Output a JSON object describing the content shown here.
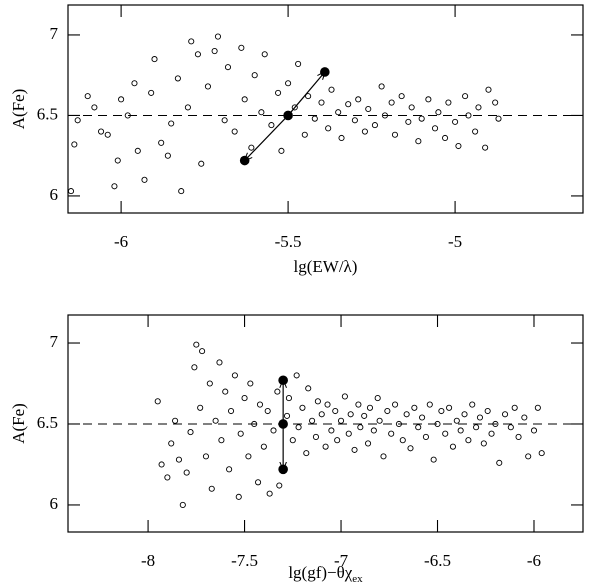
{
  "chart_data": [
    {
      "type": "scatter",
      "xlabel": "lg(EW/λ)",
      "ylabel": "A(Fe)",
      "xlim": [
        -6.159,
        -4.617
      ],
      "ylim": [
        5.894,
        7.186
      ],
      "xticks": [
        -6,
        -5.5,
        -5
      ],
      "yticks": [
        6,
        6.5,
        7
      ],
      "hline": 6.5,
      "hline_style": "dashed",
      "arrows": true,
      "series": [
        {
          "marker": "open",
          "x": [
            -6.15,
            -6.14,
            -6.13,
            -6.1,
            -6.08,
            -6.06,
            -6.04,
            -6.02,
            -6.01,
            -6.0,
            -5.98,
            -5.96,
            -5.95,
            -5.93,
            -5.91,
            -5.9,
            -5.88,
            -5.86,
            -5.85,
            -5.83,
            -5.82,
            -5.8,
            -5.79,
            -5.77,
            -5.76,
            -5.74,
            -5.72,
            -5.71,
            -5.69,
            -5.68,
            -5.66,
            -5.64,
            -5.63,
            -5.61,
            -5.6,
            -5.58,
            -5.57,
            -5.55,
            -5.53,
            -5.52,
            -5.5,
            -5.48,
            -5.47,
            -5.45,
            -5.44,
            -5.42,
            -5.4,
            -5.38,
            -5.37,
            -5.35,
            -5.34,
            -5.32,
            -5.3,
            -5.29,
            -5.27,
            -5.26,
            -5.24,
            -5.22,
            -5.21,
            -5.19,
            -5.18,
            -5.16,
            -5.14,
            -5.13,
            -5.11,
            -5.1,
            -5.08,
            -5.06,
            -5.05,
            -5.03,
            -5.02,
            -5.0,
            -4.99,
            -4.97,
            -4.96,
            -4.94,
            -4.93,
            -4.91,
            -4.9,
            -4.88,
            -4.87
          ],
          "y": [
            6.03,
            6.32,
            6.47,
            6.62,
            6.55,
            6.4,
            6.38,
            6.06,
            6.22,
            6.6,
            6.5,
            6.7,
            6.28,
            6.1,
            6.64,
            6.85,
            6.33,
            6.25,
            6.45,
            6.73,
            6.03,
            6.55,
            6.96,
            6.88,
            6.2,
            6.68,
            6.9,
            6.99,
            6.47,
            6.8,
            6.4,
            6.92,
            6.6,
            6.3,
            6.75,
            6.52,
            6.88,
            6.44,
            6.64,
            6.28,
            6.7,
            6.55,
            6.82,
            6.38,
            6.62,
            6.48,
            6.58,
            6.42,
            6.66,
            6.52,
            6.36,
            6.57,
            6.47,
            6.6,
            6.4,
            6.54,
            6.44,
            6.68,
            6.5,
            6.58,
            6.38,
            6.62,
            6.46,
            6.55,
            6.34,
            6.48,
            6.6,
            6.42,
            6.52,
            6.36,
            6.58,
            6.46,
            6.31,
            6.62,
            6.5,
            6.4,
            6.55,
            6.3,
            6.66,
            6.58,
            6.48
          ]
        },
        {
          "marker": "filled",
          "x": [
            -5.63,
            -5.5,
            -5.39
          ],
          "y": [
            6.22,
            6.5,
            6.77
          ]
        }
      ]
    },
    {
      "type": "scatter",
      "xlabel": "lg(gf)−θχ",
      "xlabel_sub": "ex",
      "ylabel": "A(Fe)",
      "xlim": [
        -8.415,
        -5.746
      ],
      "ylim": [
        5.833,
        7.173
      ],
      "xticks": [
        -8,
        -7.5,
        -7,
        -6.5,
        -6
      ],
      "yticks": [
        6,
        6.5,
        7
      ],
      "hline": 6.5,
      "hline_style": "dashed",
      "arrows": true,
      "series": [
        {
          "marker": "open",
          "x": [
            -7.95,
            -7.93,
            -7.9,
            -7.88,
            -7.86,
            -7.84,
            -7.82,
            -7.8,
            -7.78,
            -7.76,
            -7.75,
            -7.73,
            -7.72,
            -7.7,
            -7.68,
            -7.67,
            -7.65,
            -7.63,
            -7.62,
            -7.6,
            -7.58,
            -7.57,
            -7.55,
            -7.53,
            -7.52,
            -7.5,
            -7.48,
            -7.47,
            -7.45,
            -7.43,
            -7.42,
            -7.4,
            -7.38,
            -7.37,
            -7.35,
            -7.33,
            -7.32,
            -7.28,
            -7.27,
            -7.25,
            -7.23,
            -7.22,
            -7.2,
            -7.18,
            -7.17,
            -7.15,
            -7.13,
            -7.12,
            -7.1,
            -7.08,
            -7.07,
            -7.05,
            -7.03,
            -7.02,
            -7.0,
            -6.98,
            -6.96,
            -6.95,
            -6.93,
            -6.91,
            -6.9,
            -6.88,
            -6.86,
            -6.85,
            -6.83,
            -6.81,
            -6.8,
            -6.78,
            -6.76,
            -6.74,
            -6.72,
            -6.7,
            -6.68,
            -6.66,
            -6.64,
            -6.62,
            -6.6,
            -6.58,
            -6.56,
            -6.54,
            -6.52,
            -6.5,
            -6.48,
            -6.46,
            -6.44,
            -6.42,
            -6.4,
            -6.38,
            -6.36,
            -6.34,
            -6.32,
            -6.3,
            -6.28,
            -6.26,
            -6.24,
            -6.22,
            -6.2,
            -6.18,
            -6.15,
            -6.12,
            -6.1,
            -6.08,
            -6.05,
            -6.03,
            -6.0,
            -5.98,
            -5.96
          ],
          "y": [
            6.64,
            6.25,
            6.17,
            6.38,
            6.52,
            6.28,
            6.0,
            6.2,
            6.45,
            6.85,
            6.99,
            6.6,
            6.95,
            6.3,
            6.75,
            6.1,
            6.52,
            6.88,
            6.4,
            6.7,
            6.22,
            6.58,
            6.8,
            6.05,
            6.44,
            6.66,
            6.3,
            6.75,
            6.5,
            6.14,
            6.62,
            6.36,
            6.58,
            6.07,
            6.46,
            6.7,
            6.12,
            6.55,
            6.66,
            6.4,
            6.8,
            6.48,
            6.6,
            6.32,
            6.72,
            6.52,
            6.42,
            6.64,
            6.56,
            6.36,
            6.62,
            6.46,
            6.58,
            6.4,
            6.52,
            6.67,
            6.44,
            6.56,
            6.34,
            6.62,
            6.48,
            6.55,
            6.38,
            6.6,
            6.46,
            6.66,
            6.52,
            6.3,
            6.58,
            6.44,
            6.62,
            6.5,
            6.4,
            6.56,
            6.35,
            6.6,
            6.48,
            6.54,
            6.42,
            6.62,
            6.28,
            6.5,
            6.58,
            6.44,
            6.6,
            6.36,
            6.52,
            6.46,
            6.56,
            6.4,
            6.62,
            6.48,
            6.54,
            6.38,
            6.58,
            6.44,
            6.5,
            6.26,
            6.56,
            6.48,
            6.6,
            6.42,
            6.54,
            6.3,
            6.46,
            6.6,
            6.32
          ]
        },
        {
          "marker": "filled",
          "x": [
            -7.3,
            -7.3,
            -7.3
          ],
          "y": [
            6.22,
            6.5,
            6.77
          ]
        }
      ]
    }
  ]
}
